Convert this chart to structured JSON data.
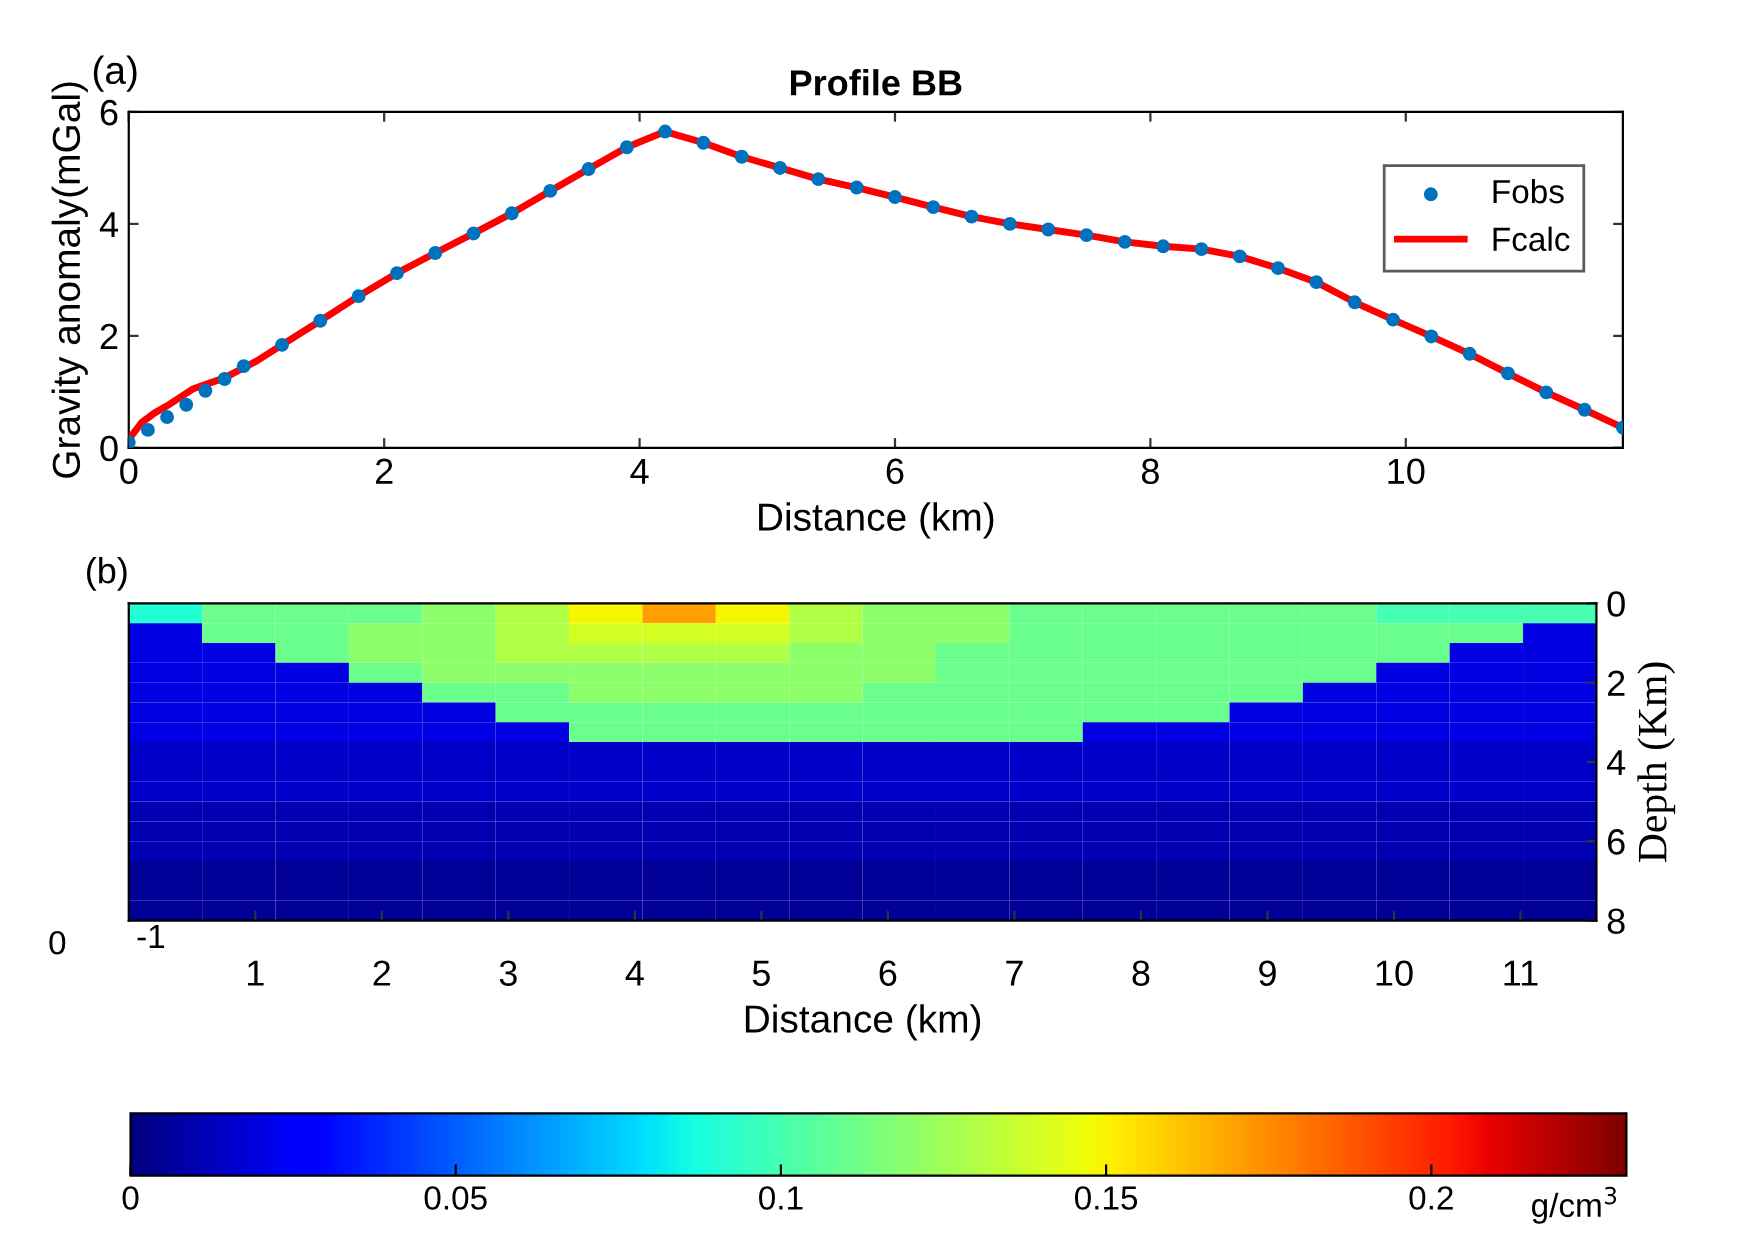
{
  "chart_data": [
    {
      "type": "line",
      "title": "Profile BB",
      "xlabel": "Distance (km)",
      "ylabel": "Gravity anomaly(mGal)",
      "annotations": [
        "(a)"
      ],
      "xlim": [
        0,
        11.7
      ],
      "xticks": [
        0,
        2,
        4,
        6,
        8,
        10
      ],
      "ylim": [
        0,
        6
      ],
      "yticks": [
        0,
        2,
        4,
        6
      ],
      "grid": false,
      "legend": "top right",
      "series": [
        {
          "name": "Fobs",
          "type": "scatter",
          "marker": "circle",
          "color": "#0072bd",
          "x": [
            0,
            0.15,
            0.3,
            0.45,
            0.6,
            0.75,
            0.9,
            1.2,
            1.5,
            1.8,
            2.1,
            2.4,
            2.7,
            3.0,
            3.3,
            3.6,
            3.9,
            4.2,
            4.5,
            4.8,
            5.1,
            5.4,
            5.7,
            6.0,
            6.3,
            6.6,
            6.9,
            7.2,
            7.5,
            7.8,
            8.1,
            8.4,
            8.7,
            9.0,
            9.3,
            9.6,
            9.9,
            10.2,
            10.5,
            10.8,
            11.1,
            11.4,
            11.7
          ],
          "values": [
            0.1,
            0.32,
            0.55,
            0.77,
            1.02,
            1.23,
            1.46,
            1.84,
            2.27,
            2.71,
            3.12,
            3.48,
            3.83,
            4.19,
            4.59,
            4.98,
            5.37,
            5.65,
            5.45,
            5.2,
            5.0,
            4.8,
            4.65,
            4.48,
            4.3,
            4.13,
            4.0,
            3.9,
            3.8,
            3.68,
            3.6,
            3.55,
            3.42,
            3.21,
            2.96,
            2.6,
            2.29,
            1.99,
            1.68,
            1.33,
            0.99,
            0.68,
            0.36
          ]
        },
        {
          "name": "Fcalc",
          "type": "line",
          "marker": "none",
          "line_style": "solid",
          "color": "#ff0000",
          "x": [
            0,
            0.1,
            0.2,
            0.3,
            0.5,
            0.75,
            1.0,
            1.2,
            1.5,
            1.8,
            2.1,
            2.4,
            2.7,
            3.0,
            3.3,
            3.6,
            3.9,
            4.2,
            4.5,
            4.8,
            5.1,
            5.4,
            5.7,
            6.0,
            6.3,
            6.6,
            6.9,
            7.2,
            7.5,
            7.8,
            8.1,
            8.4,
            8.7,
            9.0,
            9.3,
            9.6,
            9.9,
            10.2,
            10.5,
            10.8,
            11.1,
            11.4,
            11.7
          ],
          "values": [
            0.15,
            0.45,
            0.62,
            0.75,
            1.05,
            1.25,
            1.55,
            1.84,
            2.27,
            2.71,
            3.12,
            3.48,
            3.83,
            4.19,
            4.59,
            4.98,
            5.37,
            5.65,
            5.45,
            5.2,
            5.0,
            4.8,
            4.65,
            4.48,
            4.3,
            4.13,
            4.0,
            3.9,
            3.8,
            3.68,
            3.6,
            3.55,
            3.42,
            3.21,
            2.96,
            2.6,
            2.29,
            1.99,
            1.68,
            1.33,
            0.99,
            0.68,
            0.36
          ]
        }
      ]
    },
    {
      "type": "heatmap",
      "xlabel": "Distance (km)",
      "ylabel": "Depth (Km)",
      "clabel": "g/cm$^{3}$",
      "annotations": [
        "(b)",
        "-1",
        "0"
      ],
      "xlim": [
        0,
        11.6
      ],
      "xticks": [
        1,
        2,
        3,
        4,
        5,
        6,
        7,
        8,
        9,
        10,
        11
      ],
      "ylim": [
        8,
        0
      ],
      "yticks": [
        0,
        2,
        4,
        6,
        8
      ],
      "clim": [
        0,
        0.23
      ],
      "cticks": [
        0,
        0.05,
        0.1,
        0.15,
        0.2
      ],
      "x": [
        0.29,
        0.87,
        1.45,
        2.03,
        2.61,
        3.19,
        3.77,
        4.35,
        4.93,
        5.51,
        6.09,
        6.67,
        7.25,
        7.83,
        8.41,
        8.99,
        9.57,
        10.15,
        10.73,
        11.31
      ],
      "cells": [
        [
          0.09,
          0.11,
          0.11,
          0.11,
          0.12,
          0.13,
          0.15,
          0.17,
          0.15,
          0.13,
          0.12,
          0.12,
          0.11,
          0.11,
          0.11,
          0.11,
          0.11,
          0.1,
          0.1,
          0.1
        ],
        [
          0.02,
          0.11,
          0.11,
          0.12,
          0.12,
          0.13,
          0.14,
          0.14,
          0.14,
          0.13,
          0.12,
          0.12,
          0.11,
          0.11,
          0.11,
          0.11,
          0.11,
          0.11,
          0.11,
          0.02
        ],
        [
          0.02,
          0.02,
          0.11,
          0.12,
          0.12,
          0.13,
          0.13,
          0.13,
          0.13,
          0.12,
          0.12,
          0.11,
          0.11,
          0.11,
          0.11,
          0.11,
          0.11,
          0.11,
          0.02,
          0.02
        ],
        [
          0.02,
          0.02,
          0.02,
          0.11,
          0.12,
          0.12,
          0.12,
          0.12,
          0.12,
          0.12,
          0.12,
          0.11,
          0.11,
          0.11,
          0.11,
          0.11,
          0.11,
          0.02,
          0.02,
          0.02
        ],
        [
          0.02,
          0.02,
          0.02,
          0.02,
          0.11,
          0.11,
          0.12,
          0.12,
          0.12,
          0.12,
          0.11,
          0.11,
          0.11,
          0.11,
          0.11,
          0.11,
          0.02,
          0.02,
          0.02,
          0.02
        ],
        [
          0.02,
          0.02,
          0.02,
          0.02,
          0.02,
          0.11,
          0.11,
          0.11,
          0.11,
          0.11,
          0.11,
          0.11,
          0.11,
          0.11,
          0.11,
          0.02,
          0.02,
          0.02,
          0.02,
          0.02
        ],
        [
          0.02,
          0.02,
          0.02,
          0.02,
          0.02,
          0.02,
          0.11,
          0.11,
          0.11,
          0.11,
          0.11,
          0.11,
          0.11,
          0.02,
          0.02,
          0.02,
          0.02,
          0.02,
          0.02,
          0.02
        ],
        [
          0.015,
          0.015,
          0.015,
          0.015,
          0.015,
          0.015,
          0.015,
          0.015,
          0.015,
          0.015,
          0.015,
          0.015,
          0.015,
          0.015,
          0.015,
          0.015,
          0.015,
          0.015,
          0.015,
          0.015
        ],
        [
          0.015,
          0.015,
          0.015,
          0.015,
          0.015,
          0.015,
          0.015,
          0.015,
          0.015,
          0.015,
          0.015,
          0.015,
          0.015,
          0.015,
          0.015,
          0.015,
          0.015,
          0.015,
          0.015,
          0.015
        ],
        [
          0.015,
          0.015,
          0.015,
          0.015,
          0.015,
          0.015,
          0.015,
          0.015,
          0.015,
          0.015,
          0.015,
          0.015,
          0.015,
          0.015,
          0.015,
          0.015,
          0.015,
          0.015,
          0.015,
          0.015
        ],
        [
          0.01,
          0.01,
          0.01,
          0.01,
          0.01,
          0.01,
          0.01,
          0.01,
          0.01,
          0.01,
          0.01,
          0.01,
          0.01,
          0.01,
          0.01,
          0.01,
          0.01,
          0.01,
          0.01,
          0.01
        ],
        [
          0.01,
          0.01,
          0.01,
          0.01,
          0.01,
          0.01,
          0.01,
          0.01,
          0.01,
          0.01,
          0.01,
          0.01,
          0.01,
          0.01,
          0.01,
          0.01,
          0.01,
          0.01,
          0.01,
          0.01
        ],
        [
          0.01,
          0.01,
          0.01,
          0.01,
          0.01,
          0.01,
          0.01,
          0.01,
          0.01,
          0.01,
          0.01,
          0.01,
          0.01,
          0.01,
          0.01,
          0.01,
          0.01,
          0.01,
          0.01,
          0.01
        ],
        [
          0.005,
          0.005,
          0.005,
          0.005,
          0.005,
          0.005,
          0.005,
          0.005,
          0.005,
          0.005,
          0.005,
          0.005,
          0.005,
          0.005,
          0.005,
          0.005,
          0.005,
          0.005,
          0.005,
          0.005
        ],
        [
          0.005,
          0.005,
          0.005,
          0.005,
          0.005,
          0.005,
          0.005,
          0.005,
          0.005,
          0.005,
          0.005,
          0.005,
          0.005,
          0.005,
          0.005,
          0.005,
          0.005,
          0.005,
          0.005,
          0.005
        ],
        [
          0.005,
          0.005,
          0.005,
          0.005,
          0.005,
          0.005,
          0.005,
          0.005,
          0.005,
          0.005,
          0.005,
          0.005,
          0.005,
          0.005,
          0.005,
          0.005,
          0.005,
          0.005,
          0.005,
          0.005
        ]
      ]
    }
  ]
}
